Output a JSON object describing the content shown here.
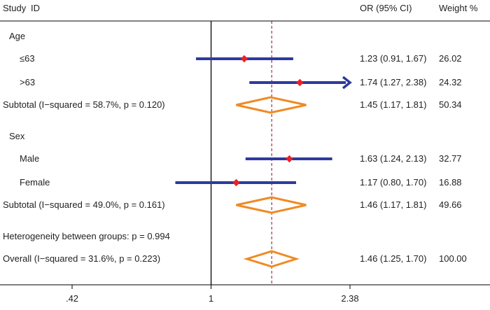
{
  "header": {
    "study": "Study",
    "id": "ID",
    "or": "OR (95% CI)",
    "weight": "Weight %"
  },
  "chart_data": {
    "type": "forest",
    "x_scale": "log",
    "xlim": [
      0.42,
      2.38
    ],
    "x_ticks": [
      {
        "value": 0.42,
        "label": ".42"
      },
      {
        "value": 1,
        "label": "1"
      },
      {
        "value": 2.38,
        "label": "2.38"
      }
    ],
    "null_line": 1,
    "overall_line": 1.46,
    "rows": [
      {
        "kind": "group",
        "label": "Age"
      },
      {
        "kind": "study",
        "label": "≤63",
        "or": 1.23,
        "lo": 0.91,
        "hi": 1.67,
        "ci_text": "1.23 (0.91, 1.67)",
        "weight": "26.02"
      },
      {
        "kind": "study",
        "label": ">63",
        "or": 1.74,
        "lo": 1.27,
        "hi": 2.38,
        "ci_text": "1.74 (1.27, 2.38)",
        "weight": "24.32",
        "arrow": true
      },
      {
        "kind": "subtotal",
        "label": "Subtotal  (I−squared = 58.7%, p = 0.120)",
        "or": 1.45,
        "lo": 1.17,
        "hi": 1.81,
        "ci_text": "1.45 (1.17, 1.81)",
        "weight": "50.34"
      },
      {
        "kind": "group",
        "label": "Sex"
      },
      {
        "kind": "study",
        "label": "Male",
        "or": 1.63,
        "lo": 1.24,
        "hi": 2.13,
        "ci_text": "1.63 (1.24, 2.13)",
        "weight": "32.77"
      },
      {
        "kind": "study",
        "label": "Female",
        "or": 1.17,
        "lo": 0.8,
        "hi": 1.7,
        "ci_text": "1.17 (0.80, 1.70)",
        "weight": "16.88"
      },
      {
        "kind": "subtotal",
        "label": "Subtotal  (I−squared = 49.0%, p = 0.161)",
        "or": 1.46,
        "lo": 1.17,
        "hi": 1.81,
        "ci_text": "1.46 (1.17, 1.81)",
        "weight": "49.66"
      },
      {
        "kind": "text",
        "label": "Heterogeneity between groups: p = 0.994"
      },
      {
        "kind": "subtotal",
        "label": "Overall  (I−squared = 31.6%, p = 0.223)",
        "or": 1.46,
        "lo": 1.25,
        "hi": 1.7,
        "ci_text": "1.46 (1.25, 1.70)",
        "weight": "100.00"
      }
    ],
    "colors": {
      "ci_line": "#2e3a9e",
      "point": "#e8232a",
      "diamond": "#f08a24",
      "null_line": "#000000",
      "overall_line": "#9b1c2c"
    }
  }
}
